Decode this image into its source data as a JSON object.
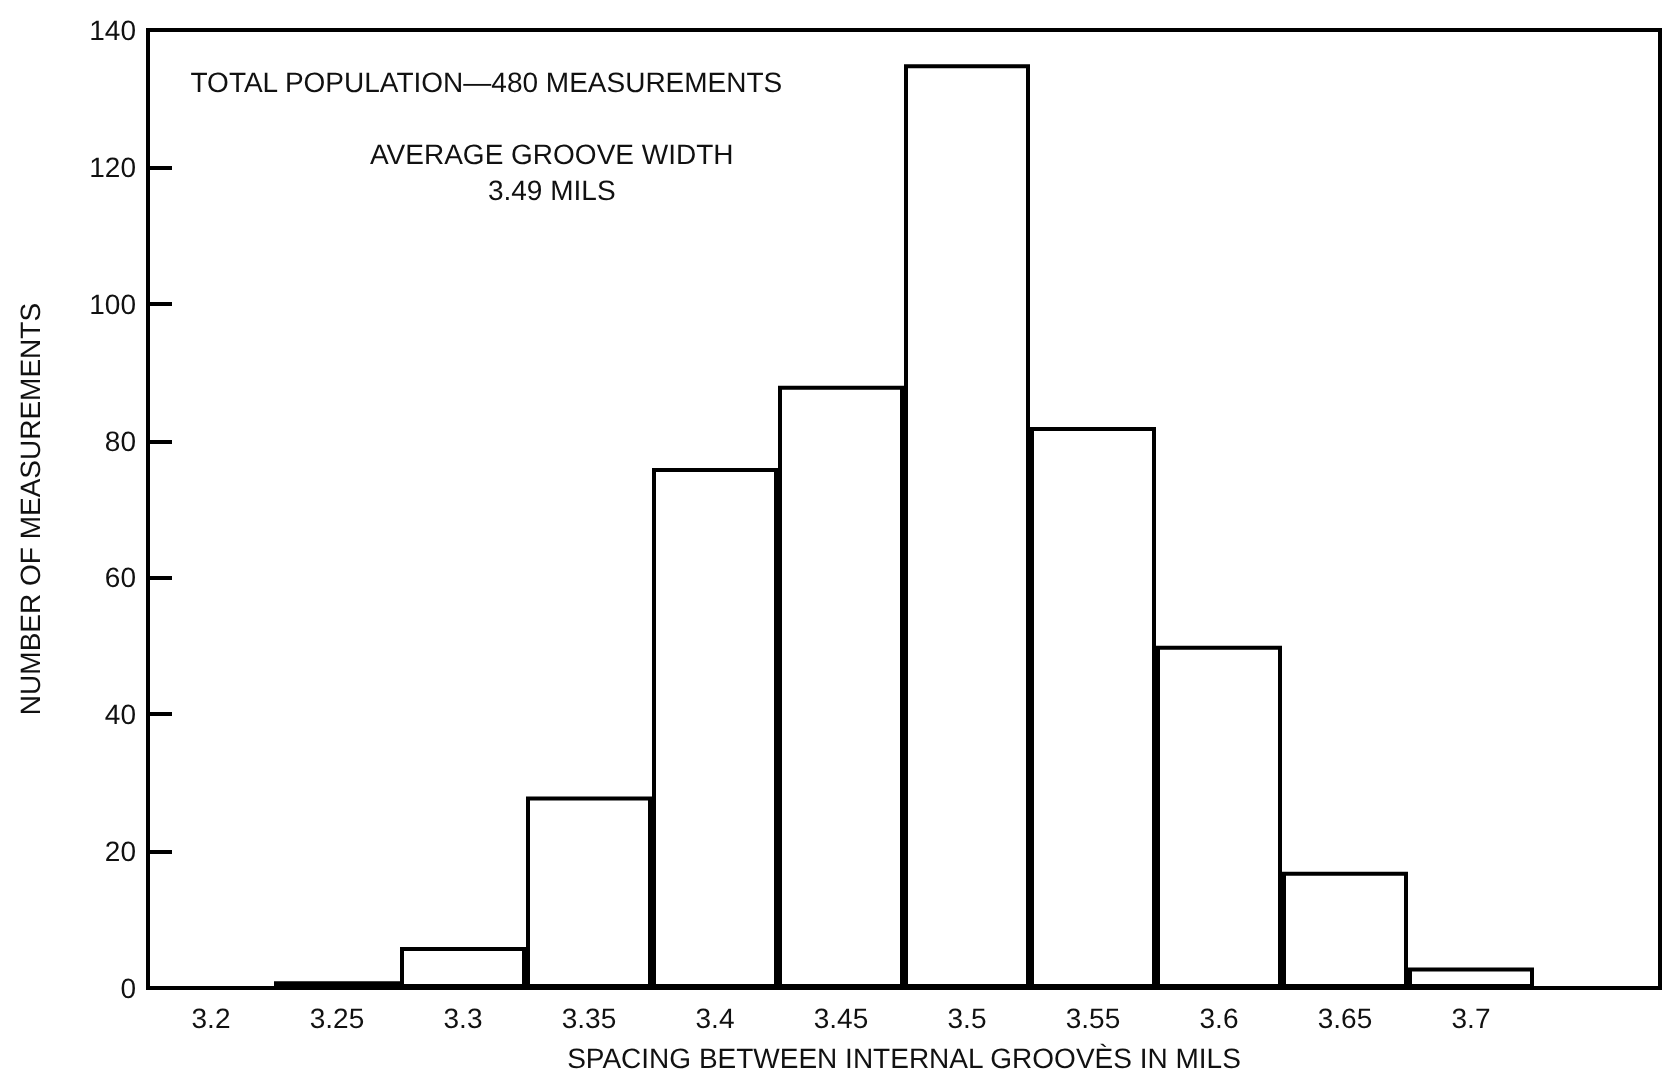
{
  "chart_data": {
    "type": "bar",
    "xlabel": "SPACING BETWEEN INTERNAL GROOVÈS IN MILS",
    "ylabel": "NUMBER OF MEASUREMENTS",
    "categories": [
      "3.2",
      "3.25",
      "3.3",
      "3.35",
      "3.4",
      "3.45",
      "3.5",
      "3.55",
      "3.6",
      "3.65",
      "3.7",
      null
    ],
    "values": [
      0,
      1,
      6,
      28,
      76,
      88,
      135,
      82,
      50,
      17,
      3,
      null
    ],
    "color": "#ffffff",
    "ylim": [
      0,
      140
    ],
    "yticks": [
      0,
      20,
      40,
      60,
      80,
      100,
      120,
      140
    ],
    "grid": false,
    "annotations": [
      "TOTAL POPULATION—480 MEASUREMENTS",
      "AVERAGE GROOVE WIDTH\n3.49 MILS"
    ]
  }
}
